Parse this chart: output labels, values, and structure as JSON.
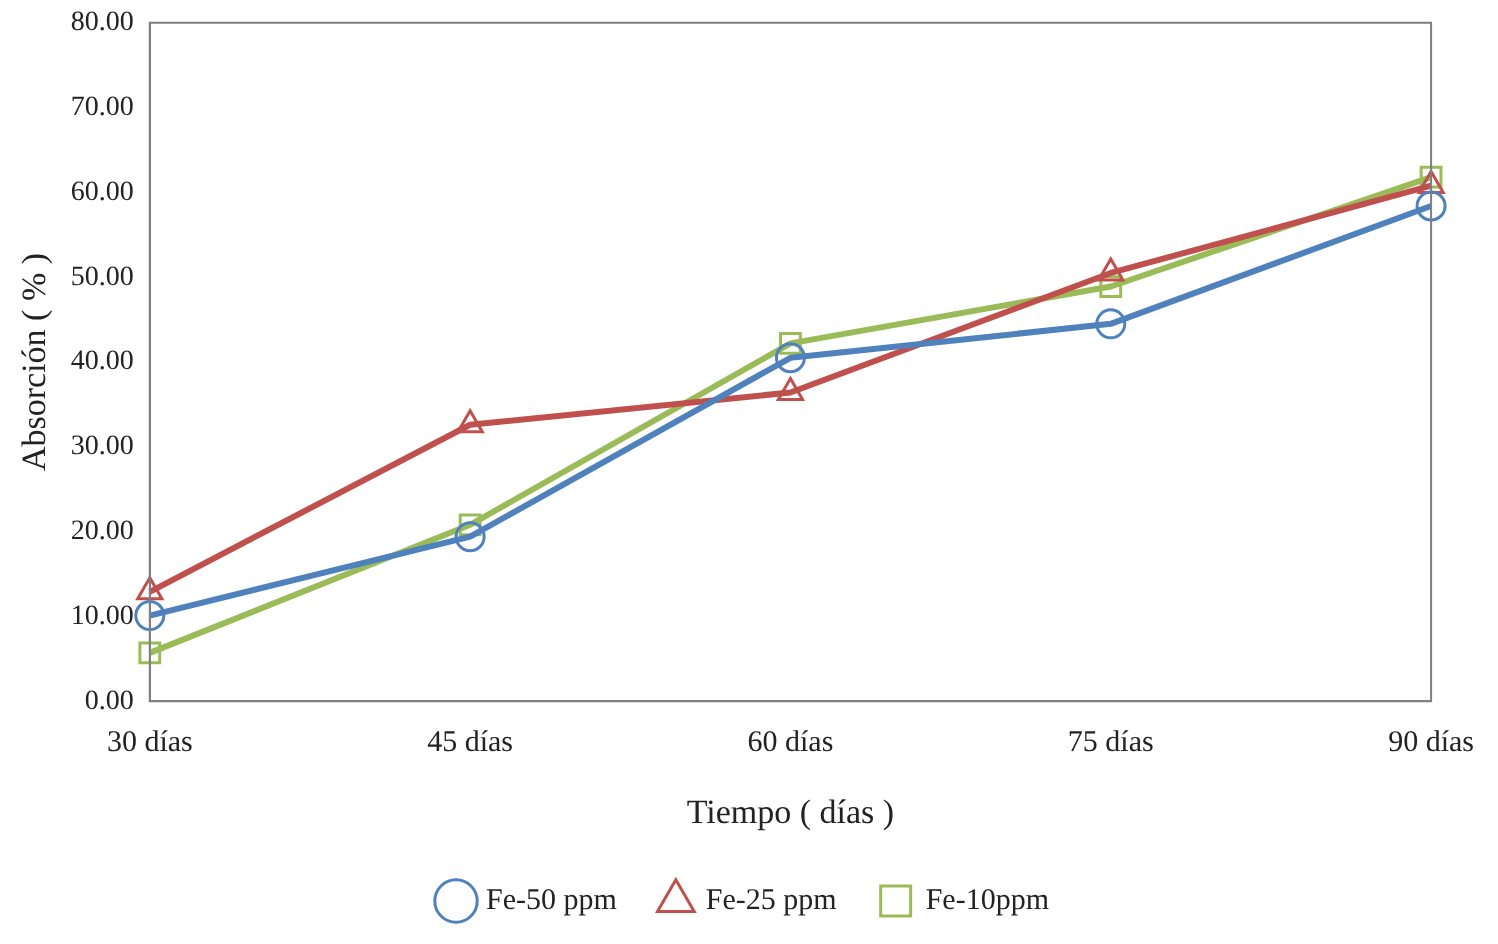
{
  "chart_data": {
    "type": "line",
    "xlabel": "Tiempo ( días )",
    "ylabel": "Absorción ( % )",
    "categories": [
      "30 días",
      "45 días",
      "60 días",
      "75 días",
      "90 días"
    ],
    "series": [
      {
        "name": "Fe-50 ppm",
        "color": "#4f81bd",
        "marker": "circle",
        "values": [
          10.1,
          19.4,
          40.5,
          44.5,
          58.4
        ]
      },
      {
        "name": "Fe-25 ppm",
        "color": "#c0504d",
        "marker": "triangle",
        "values": [
          12.9,
          32.6,
          36.4,
          50.5,
          60.8
        ]
      },
      {
        "name": "Fe-10ppm",
        "color": "#9bbb59",
        "marker": "square",
        "values": [
          5.7,
          20.8,
          42.2,
          48.9,
          61.8
        ]
      }
    ],
    "ylim": [
      0,
      80
    ],
    "yticks": [
      {
        "value": 0,
        "label": "0.00"
      },
      {
        "value": 10,
        "label": "10.00"
      },
      {
        "value": 20,
        "label": "20.00"
      },
      {
        "value": 30,
        "label": "30.00"
      },
      {
        "value": 40,
        "label": "40.00"
      },
      {
        "value": 50,
        "label": "50.00"
      },
      {
        "value": 60,
        "label": "60.00"
      },
      {
        "value": 70,
        "label": "70.00"
      },
      {
        "value": 80,
        "label": "80.00"
      }
    ],
    "grid": false,
    "legend": "bottom",
    "line_style": "solid"
  }
}
